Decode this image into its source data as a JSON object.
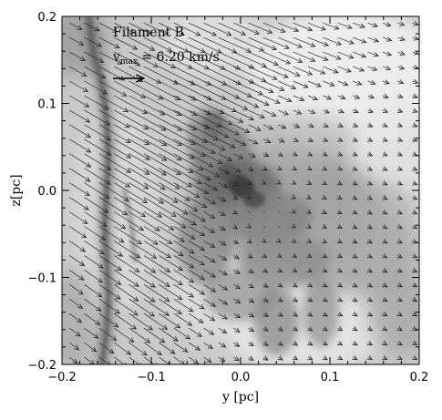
{
  "chart_data": {
    "type": "heatmap",
    "annotation": "Filament B",
    "legend": {
      "symbol": "v",
      "subscript": "max",
      "equals": " = ",
      "value": 6.2,
      "value_text": "6.20",
      "unit": "km/s"
    },
    "xlabel": "y [pc]",
    "ylabel": "z[pc]",
    "xlim": [
      -0.2,
      0.2
    ],
    "ylim": [
      -0.2,
      0.2
    ],
    "x_ticks": [
      -0.2,
      -0.1,
      0.0,
      0.1,
      0.2
    ],
    "x_tick_labels": [
      "−0.2",
      "−0.1",
      "0.0",
      "0.1",
      "0.2"
    ],
    "y_ticks": [
      -0.2,
      -0.1,
      0.0,
      0.1,
      0.2
    ],
    "y_tick_labels": [
      "−0.2",
      "−0.1",
      "0.0",
      "0.1",
      "0.2"
    ],
    "colormap": "grayscale (dark = dense)",
    "grid": false,
    "vector_field": {
      "description": "velocity vectors, strongest in upper-left converging toward dense central region",
      "grid_step": 0.0167
    }
  }
}
